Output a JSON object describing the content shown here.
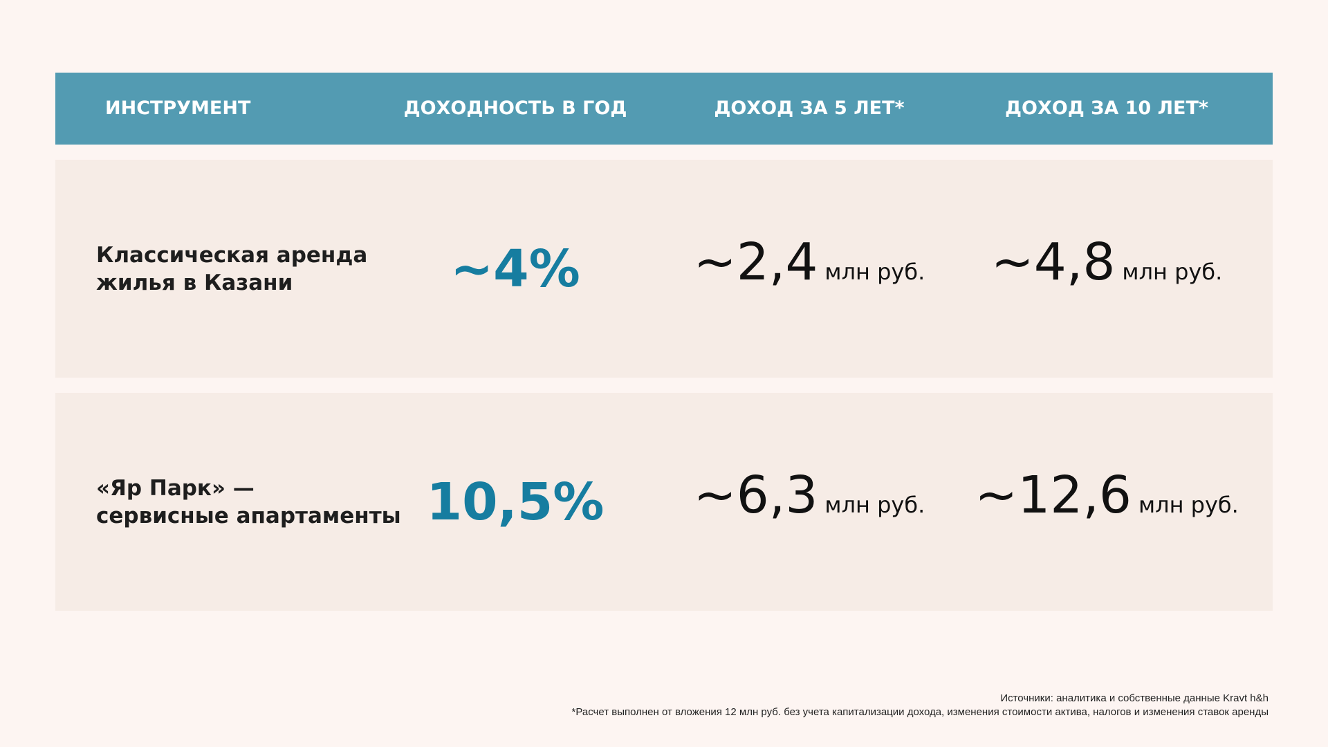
{
  "table": {
    "headers": [
      "ИНСТРУМЕНТ",
      "ДОХОДНОСТЬ В ГОД",
      "ДОХОД ЗА 5 ЛЕТ*",
      "ДОХОД ЗА 10 ЛЕТ*"
    ],
    "rows": [
      {
        "instrument_line1": "Классическая аренда",
        "instrument_line2": "жилья в Казани",
        "yield": "~4%",
        "income5": "~2,4",
        "income10": "~4,8",
        "unit": "млн руб."
      },
      {
        "instrument_line1": "«Яр Парк» —",
        "instrument_line2": "сервисные апартаменты",
        "yield": "10,5%",
        "income5": "~6,3",
        "income10": "~12,6",
        "unit": "млн руб."
      }
    ]
  },
  "footer": {
    "sources": "Источники: аналитика и собственные данные Kravt h&h",
    "note": "*Расчет выполнен от вложения 12 млн руб. без учета капитализации дохода, изменения стоимости актива, налогов и изменения ставок аренды"
  },
  "colors": {
    "background": "#FDF5F2",
    "header_bg": "#539BB2",
    "row_bg": "#F6ECE6",
    "accent": "#167DA0"
  }
}
